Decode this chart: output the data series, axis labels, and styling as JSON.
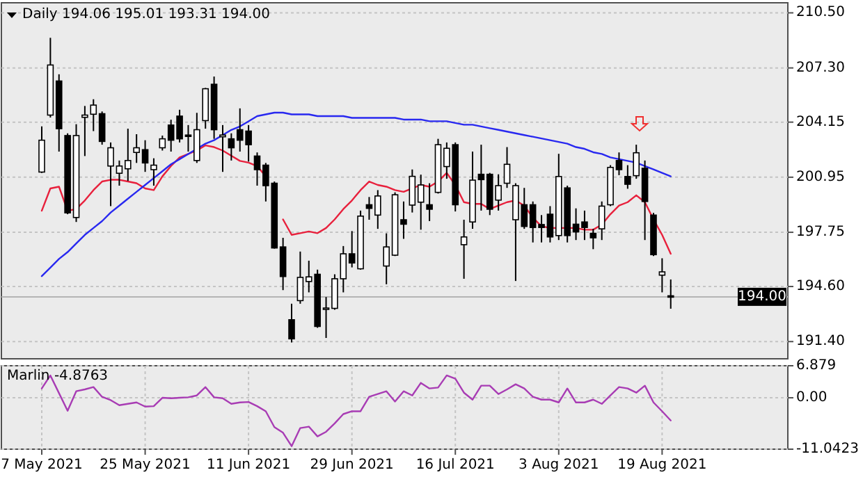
{
  "chart_data": [
    {
      "type": "candlestick",
      "title": "Daily 194.06 195.01 193.31 194.00",
      "categories": [
        null,
        null,
        null,
        null,
        null,
        null,
        null,
        null,
        null,
        null,
        null,
        null,
        null,
        null,
        null,
        null,
        null,
        null,
        null,
        null,
        null,
        null,
        null,
        null,
        null,
        null,
        null,
        null,
        null,
        null,
        null,
        null,
        null,
        null,
        null,
        null,
        null,
        null,
        null,
        null,
        null,
        null,
        null,
        null,
        null,
        null,
        null,
        null,
        null,
        null,
        null,
        null,
        null,
        null,
        null,
        null,
        null,
        null,
        null,
        null,
        null,
        null,
        null,
        null,
        null,
        null,
        null,
        null,
        null,
        null,
        null,
        null,
        null,
        null
      ],
      "ohlc": [
        [
          201.25,
          203.9,
          201.2,
          203.1
        ],
        [
          204.56,
          209.05,
          204.42,
          207.47
        ],
        [
          206.54,
          206.93,
          202.44,
          203.77
        ],
        [
          203.37,
          203.5,
          198.8,
          198.88
        ],
        [
          198.61,
          204.03,
          198.35,
          203.37
        ],
        [
          204.43,
          205.09,
          202.18,
          204.56
        ],
        [
          204.61,
          205.48,
          203.63,
          205.14
        ],
        [
          204.64,
          204.77,
          202.84,
          203.03
        ],
        [
          201.6,
          202.97,
          199.27,
          202.66
        ],
        [
          201.18,
          201.92,
          200.46,
          201.6
        ],
        [
          201.44,
          203.77,
          200.73,
          201.92
        ],
        [
          202.39,
          203.45,
          201.78,
          202.66
        ],
        [
          202.55,
          203.1,
          201.26,
          201.78
        ],
        [
          201.39,
          202.05,
          200.46,
          201.65
        ],
        [
          202.66,
          203.37,
          202.5,
          203.18
        ],
        [
          203.98,
          204.29,
          202.44,
          203.1
        ],
        [
          204.5,
          204.87,
          202.97,
          203.18
        ],
        [
          203.4,
          203.98,
          202.44,
          203.35
        ],
        [
          201.92,
          204.69,
          201.78,
          203.71
        ],
        [
          204.24,
          206.14,
          203.77,
          206.09
        ],
        [
          206.35,
          206.8,
          203.18,
          203.71
        ],
        [
          203.3,
          203.98,
          201.26,
          203.4
        ],
        [
          203.18,
          203.5,
          201.92,
          202.66
        ],
        [
          203.71,
          204.95,
          202.44,
          203.1
        ],
        [
          203.63,
          203.98,
          201.86,
          202.84
        ],
        [
          202.18,
          202.39,
          200.46,
          201.39
        ],
        [
          201.65,
          201.78,
          199.54,
          200.46
        ],
        [
          200.6,
          200.7,
          196.8,
          196.84
        ],
        [
          196.9,
          197.43,
          194.39,
          195.18
        ],
        [
          192.67,
          193.6,
          191.35,
          191.56
        ],
        [
          193.78,
          196.63,
          193.6,
          195.13
        ],
        [
          194.89,
          196.1,
          194.26,
          195.16
        ],
        [
          195.31,
          195.58,
          192.2,
          192.28
        ],
        [
          193.3,
          193.99,
          191.61,
          193.35
        ],
        [
          193.33,
          195.31,
          193.25,
          195.05
        ],
        [
          195.05,
          196.95,
          194.26,
          196.5
        ],
        [
          196.5,
          197.82,
          195.71,
          195.97
        ],
        [
          195.63,
          199.01,
          195.58,
          198.69
        ],
        [
          199.35,
          199.8,
          198.48,
          199.14
        ],
        [
          198.75,
          200.2,
          197.95,
          199.86
        ],
        [
          195.79,
          197.69,
          194.73,
          196.9
        ],
        [
          196.42,
          200.07,
          196.37,
          199.93
        ],
        [
          198.48,
          199.54,
          197.37,
          198.22
        ],
        [
          199.33,
          201.4,
          198.9,
          201.0
        ],
        [
          199.5,
          201.1,
          197.9,
          200.5
        ],
        [
          199.35,
          200.6,
          198.4,
          199.09
        ],
        [
          200.07,
          203.18,
          200.0,
          202.84
        ],
        [
          201.57,
          202.97,
          200.86,
          202.63
        ],
        [
          202.84,
          202.97,
          198.96,
          199.35
        ],
        [
          197.03,
          198.48,
          195.05,
          197.48
        ],
        [
          198.35,
          202.44,
          197.95,
          200.78
        ],
        [
          201.12,
          202.84,
          199.01,
          200.81
        ],
        [
          201.12,
          201.2,
          198.75,
          199.09
        ],
        [
          199.62,
          201.12,
          199.01,
          200.46
        ],
        [
          200.6,
          202.7,
          200.33,
          201.7
        ],
        [
          198.48,
          200.6,
          194.92,
          200.46
        ],
        [
          199.35,
          200.33,
          197.95,
          198.09
        ],
        [
          199.35,
          199.54,
          197.16,
          198.03
        ],
        [
          198.2,
          198.75,
          197.16,
          198.03
        ],
        [
          198.8,
          199.27,
          197.16,
          197.48
        ],
        [
          197.56,
          202.31,
          197.3,
          200.99
        ],
        [
          200.33,
          200.46,
          197.16,
          197.56
        ],
        [
          198.22,
          199.14,
          197.3,
          197.77
        ],
        [
          198.35,
          199.01,
          197.3,
          198.03
        ],
        [
          197.69,
          197.95,
          196.77,
          197.43
        ],
        [
          197.95,
          199.54,
          197.3,
          199.27
        ],
        [
          199.35,
          201.65,
          199.27,
          201.52
        ],
        [
          201.92,
          202.39,
          201.07,
          201.39
        ],
        [
          200.99,
          201.65,
          200.28,
          200.54
        ],
        [
          201.04,
          202.84,
          200.86,
          202.37
        ],
        [
          201.47,
          201.92,
          197.3,
          199.54
        ],
        [
          198.75,
          198.88,
          196.37,
          196.45
        ],
        [
          195.26,
          196.24,
          194.26,
          195.45
        ],
        [
          194.06,
          195.01,
          193.31,
          194.0
        ]
      ],
      "series": [
        {
          "type": "line",
          "color": "#e8203c",
          "values": [
            199.0,
            200.3,
            200.4,
            199.0,
            199.1,
            199.6,
            200.2,
            200.7,
            200.8,
            200.8,
            200.7,
            200.6,
            200.3,
            200.2,
            201.0,
            201.6,
            202.1,
            202.3,
            202.5,
            202.8,
            202.7,
            202.5,
            202.2,
            201.9,
            201.8,
            201.6,
            201.0,
            null,
            198.5,
            197.6,
            197.7,
            197.8,
            197.7,
            198.0,
            198.5,
            199.1,
            199.6,
            200.2,
            200.7,
            200.5,
            200.4,
            200.2,
            200.1,
            200.3,
            200.5,
            200.4,
            200.7,
            201.2,
            200.5,
            199.5,
            199.4,
            199.4,
            199.1,
            199.3,
            199.5,
            199.6,
            199.3,
            198.6,
            198.1,
            198.0,
            198.0,
            198.0,
            198.0,
            197.9,
            197.9,
            198.2,
            198.8,
            199.3,
            199.5,
            199.9,
            199.5,
            198.5,
            197.6,
            196.5
          ]
        },
        {
          "type": "line",
          "color": "#2828f0",
          "values": [
            195.2,
            195.7,
            196.2,
            196.6,
            197.1,
            197.6,
            198.0,
            198.4,
            198.9,
            199.3,
            199.7,
            200.1,
            200.5,
            200.9,
            201.3,
            201.7,
            202.0,
            202.3,
            202.6,
            202.9,
            203.1,
            203.4,
            203.7,
            203.9,
            204.2,
            204.5,
            204.6,
            204.7,
            204.7,
            204.6,
            204.6,
            204.6,
            204.5,
            204.5,
            204.5,
            204.5,
            204.4,
            204.4,
            204.4,
            204.4,
            204.4,
            204.4,
            204.3,
            204.3,
            204.3,
            204.2,
            204.2,
            204.2,
            204.1,
            204.0,
            204.0,
            203.9,
            203.8,
            203.7,
            203.6,
            203.5,
            203.4,
            203.3,
            203.2,
            203.1,
            203.0,
            202.9,
            202.7,
            202.6,
            202.4,
            202.3,
            202.1,
            202.0,
            201.9,
            201.8,
            201.6,
            201.4,
            201.2,
            201.0
          ]
        }
      ],
      "ylim": [
        190.4,
        210.6
      ],
      "yticks": [
        {
          "value": 191.4,
          "label": "191.40"
        },
        {
          "value": 194.6,
          "label": "194.60"
        },
        {
          "value": 197.75,
          "label": "197.75"
        },
        {
          "value": 200.95,
          "label": "200.95"
        },
        {
          "value": 204.15,
          "label": "204.15"
        },
        {
          "value": 207.3,
          "label": "207.30"
        },
        {
          "value": 210.5,
          "label": "210.50"
        }
      ],
      "grid": true,
      "tick_labels": "y",
      "ref_lines": [
        {
          "axis": "y",
          "value": 194.0,
          "label": "194.00",
          "color": "#b4b4b4"
        }
      ]
    },
    {
      "type": "line",
      "title": "Marlin -4.8763",
      "categories": [
        "7 May 2021",
        null,
        null,
        null,
        null,
        null,
        null,
        null,
        null,
        null,
        null,
        null,
        "25 May 2021",
        null,
        null,
        null,
        null,
        null,
        null,
        null,
        null,
        null,
        null,
        null,
        "11 Jun 2021",
        null,
        null,
        null,
        null,
        null,
        null,
        null,
        null,
        null,
        null,
        null,
        "29 Jun 2021",
        null,
        null,
        null,
        null,
        null,
        null,
        null,
        null,
        null,
        null,
        null,
        "16 Jul 2021",
        null,
        null,
        null,
        null,
        null,
        null,
        null,
        null,
        null,
        null,
        null,
        "3 Aug 2021",
        null,
        null,
        null,
        null,
        null,
        null,
        null,
        null,
        null,
        null,
        null,
        "19 Aug 2021",
        null
      ],
      "series": [
        {
          "color": "#a83cb4",
          "values": [
            2.0,
            4.8,
            1.0,
            -2.8,
            1.4,
            1.8,
            2.3,
            0.2,
            -0.5,
            -1.6,
            -1.3,
            -1.0,
            -1.9,
            -1.8,
            0.0,
            -0.1,
            0.0,
            0.1,
            0.5,
            2.3,
            0.1,
            -0.1,
            -1.3,
            -1.0,
            -0.9,
            -1.8,
            -2.9,
            -6.3,
            -7.5,
            -10.4,
            -6.5,
            -6.2,
            -8.3,
            -7.3,
            -5.5,
            -3.5,
            -2.9,
            -2.9,
            0.2,
            0.8,
            1.4,
            -0.8,
            1.4,
            0.5,
            3.2,
            2.0,
            2.2,
            4.8,
            4.1,
            1.1,
            -0.4,
            2.6,
            2.6,
            0.8,
            1.8,
            2.9,
            2.0,
            0.2,
            -0.4,
            -0.4,
            -1.0,
            2.0,
            -1.0,
            -1.0,
            -0.4,
            -1.3,
            0.5,
            2.3,
            2.0,
            1.1,
            2.6,
            -1.0,
            -2.9,
            -4.8763
          ]
        }
      ],
      "ylim": [
        -11.0423,
        6.879
      ],
      "yticks": [
        6.879,
        {
          "value": 0,
          "label": "0.00"
        },
        -11.0423
      ],
      "grid": true
    }
  ]
}
